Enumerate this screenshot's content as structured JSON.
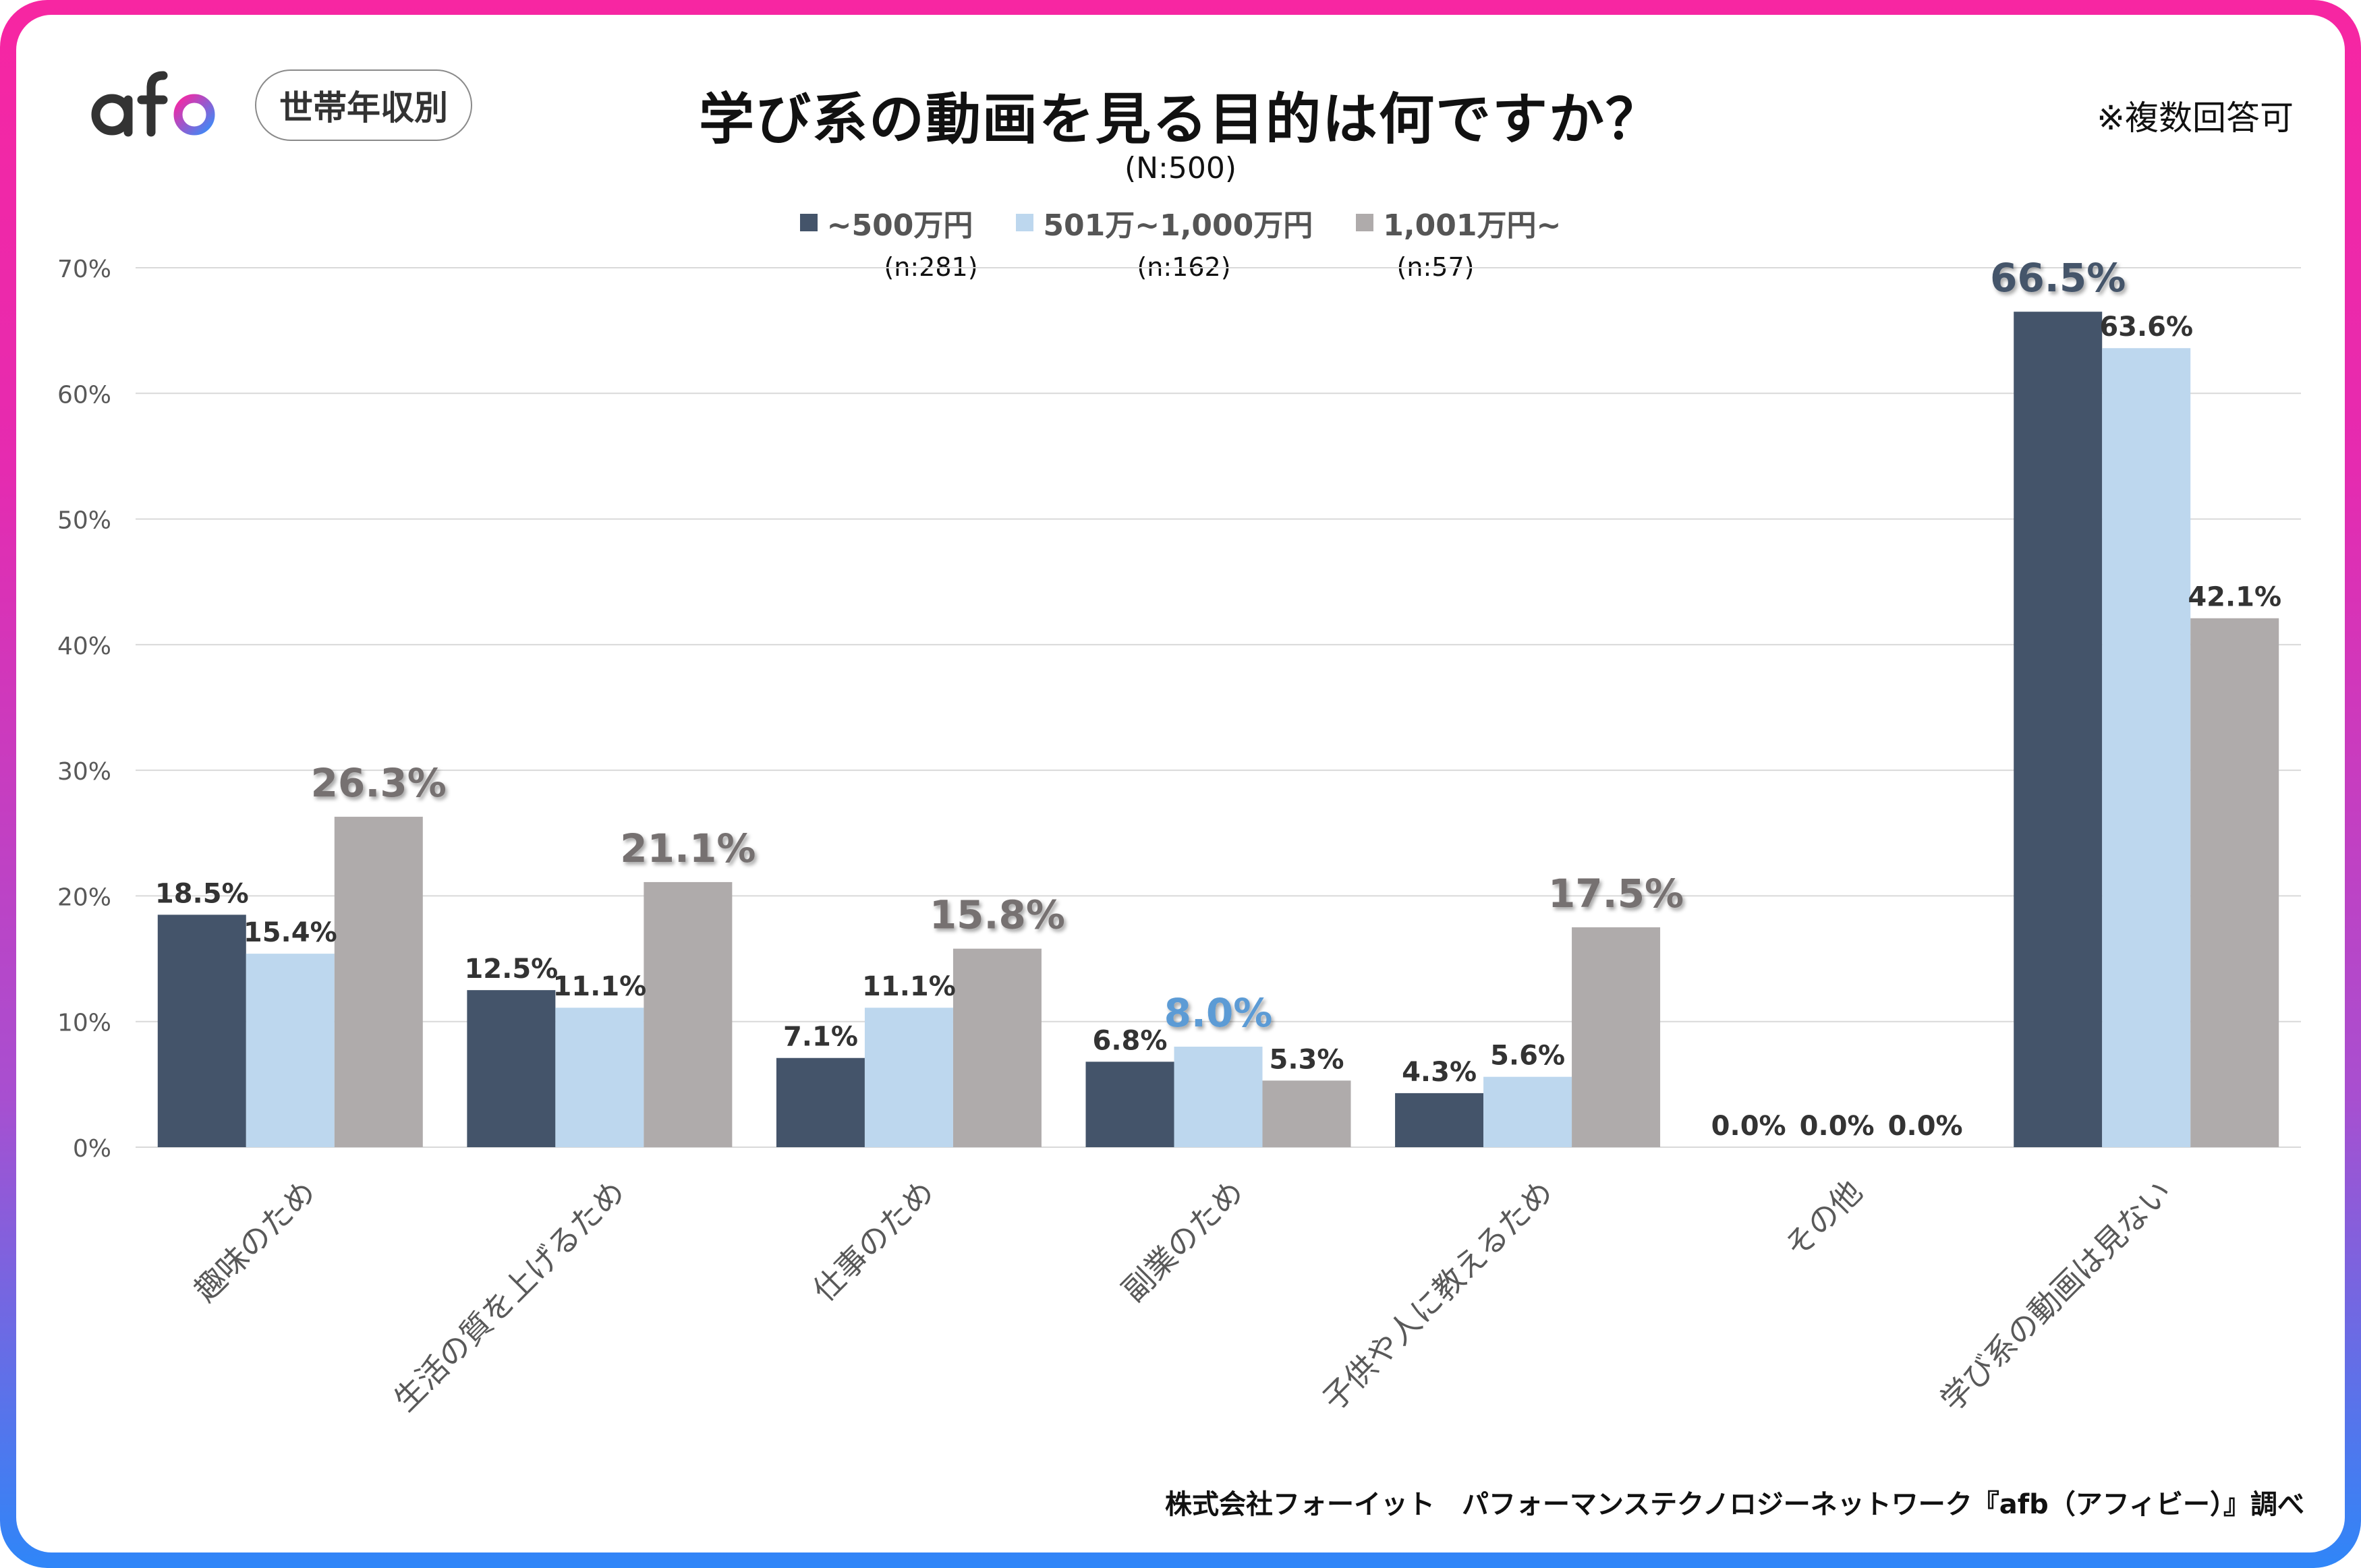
{
  "header": {
    "logo_text": "afb",
    "badge": "世帯年収別",
    "title": "学び系の動画を見る目的は何ですか？",
    "sample_size": "(N:500)",
    "note": "※複数回答可"
  },
  "colors": {
    "series1": "#44546a",
    "series2": "#bdd7ee",
    "series3": "#afabab",
    "highlight_series1": "#44546a",
    "highlight_series2": "#5b9bd5",
    "highlight_series3": "#767171",
    "label_text": "#333333",
    "axis_text": "#595959",
    "grid": "#d9d9d9",
    "frame_top": "#f726a2",
    "frame_bottom": "#2f86f8"
  },
  "footer": {
    "source": "株式会社フォーイット　パフォーマンステクノロジーネットワーク『afb（アフィビー）』調べ"
  },
  "chart_data": {
    "type": "bar",
    "title": "学び系の動画を見る目的は何ですか？",
    "subtitle": "(N:500)",
    "xlabel": "",
    "ylabel": "",
    "ylim": [
      0,
      70
    ],
    "yticks": [
      0,
      10,
      20,
      30,
      40,
      50,
      60,
      70
    ],
    "ytick_labels": [
      "0%",
      "10%",
      "20%",
      "30%",
      "40%",
      "50%",
      "60%",
      "70%"
    ],
    "grid": true,
    "legend_position": "top-center",
    "categories": [
      "趣味のため",
      "生活の質を上げるため",
      "仕事のため",
      "副業のため",
      "子供や人に教えるため",
      "その他",
      "学び系の動画は見ない"
    ],
    "series": [
      {
        "name": "~500万円",
        "n": "(n:281)",
        "values": [
          18.5,
          12.5,
          7.1,
          6.8,
          4.3,
          0.0,
          66.5
        ],
        "labels": [
          "18.5%",
          "12.5%",
          "7.1%",
          "6.8%",
          "4.3%",
          "0.0%",
          "66.5%"
        ]
      },
      {
        "name": "501万~1,000万円",
        "n": "(n:162)",
        "values": [
          15.4,
          11.1,
          11.1,
          8.0,
          5.6,
          0.0,
          63.6
        ],
        "labels": [
          "15.4%",
          "11.1%",
          "11.1%",
          "8.0%",
          "5.6%",
          "0.0%",
          "63.6%"
        ]
      },
      {
        "name": "1,001万円~",
        "n": "(n:57)",
        "values": [
          26.3,
          21.1,
          15.8,
          5.3,
          17.5,
          0.0,
          42.1
        ],
        "labels": [
          "26.3%",
          "21.1%",
          "15.8%",
          "5.3%",
          "17.5%",
          "0.0%",
          "42.1%"
        ]
      }
    ],
    "highlighted": [
      [
        0,
        2
      ],
      [
        1,
        2
      ],
      [
        2,
        2
      ],
      [
        3,
        1
      ],
      [
        4,
        2
      ],
      [
        6,
        0
      ]
    ]
  }
}
